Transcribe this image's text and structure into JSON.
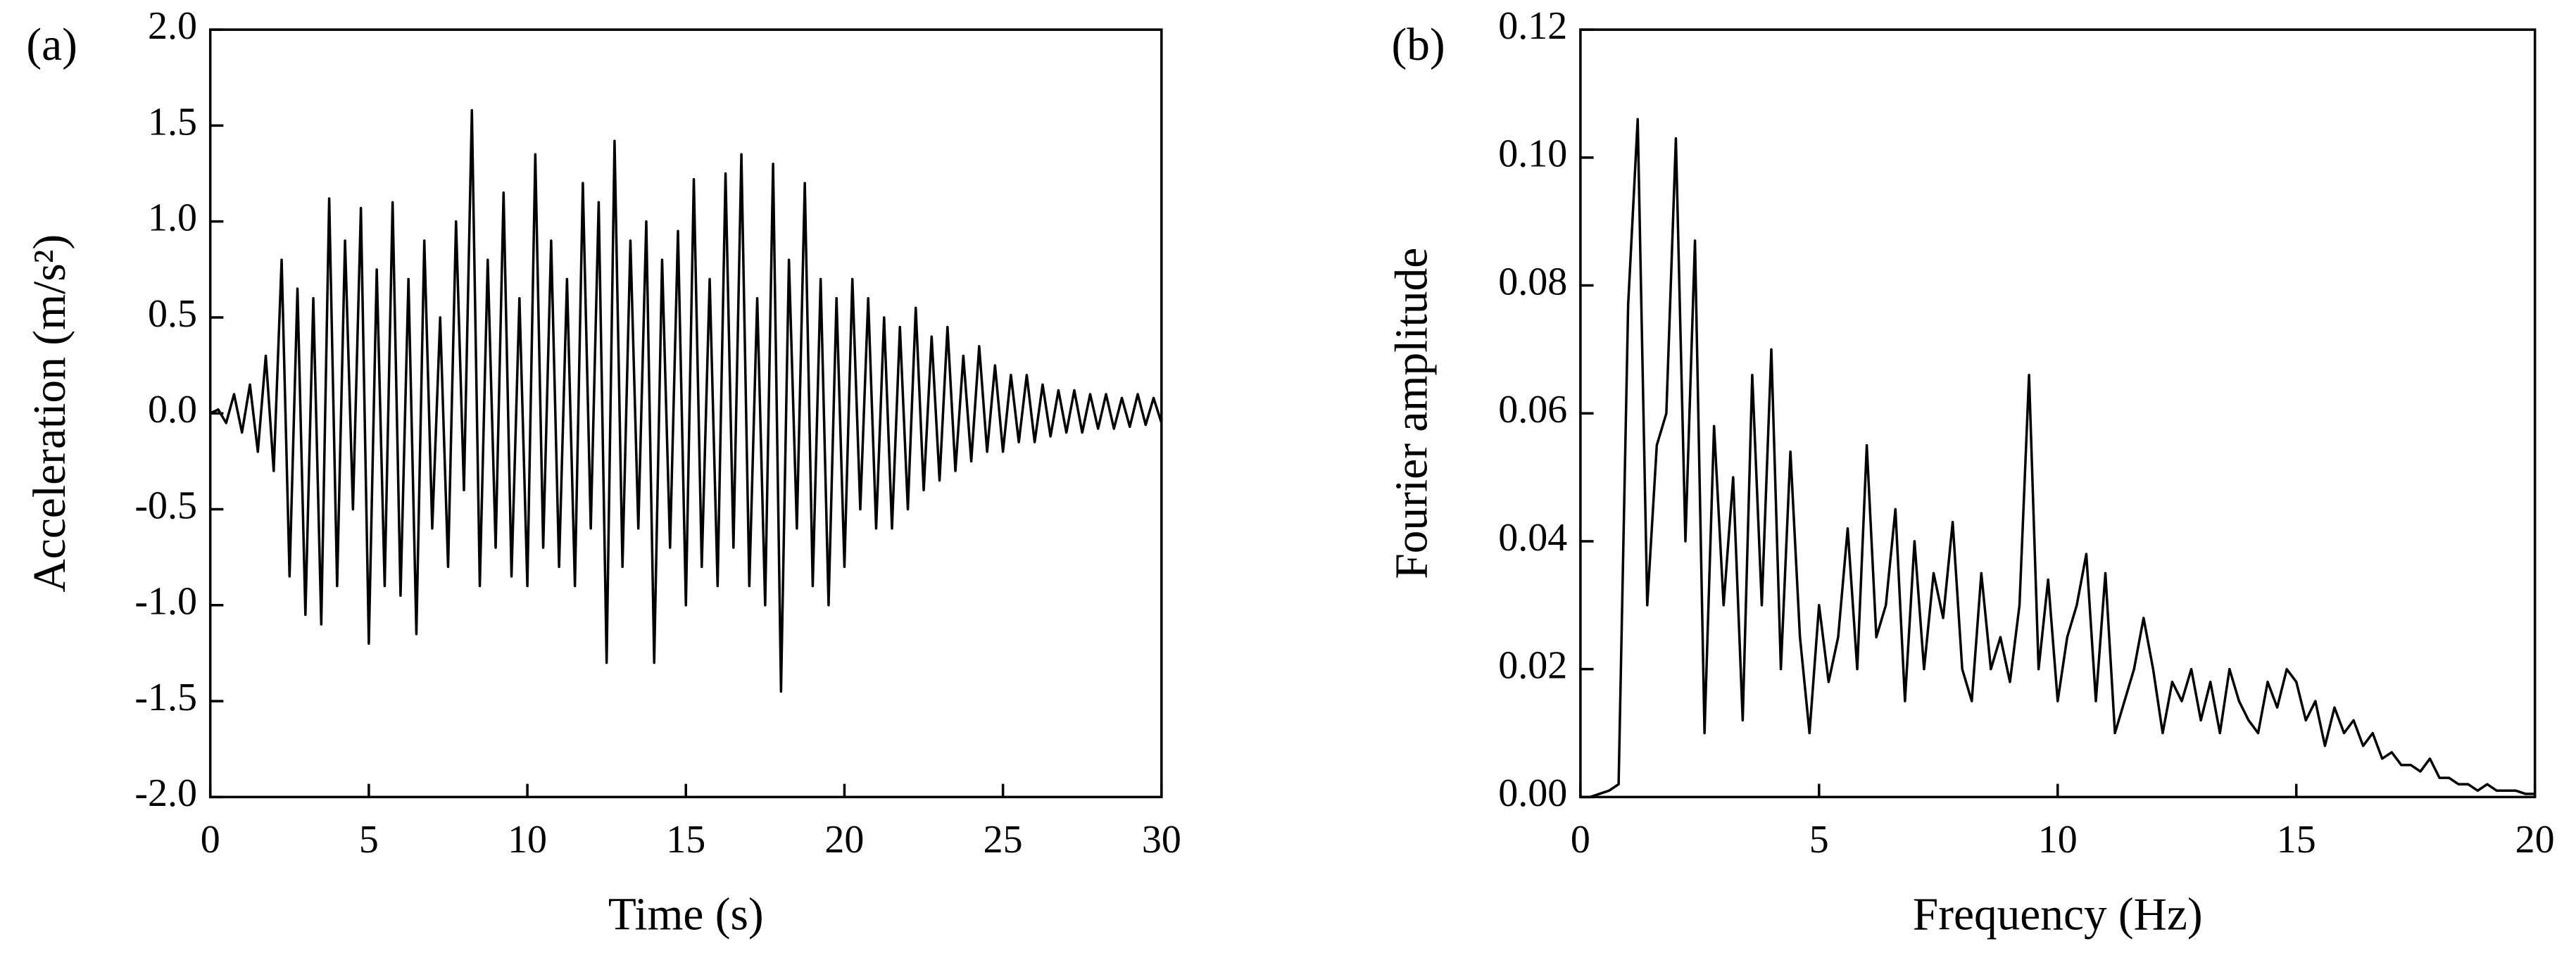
{
  "chart_data": [
    {
      "type": "line",
      "panel_label": "(a)",
      "xlabel": "Time (s)",
      "ylabel": "Acceleration (m/s²)",
      "xlim": [
        0,
        30
      ],
      "xticks": [
        0,
        5,
        10,
        15,
        20,
        25,
        30
      ],
      "ylim": [
        -2,
        2
      ],
      "yticks": [
        {
          "value": -2,
          "label": "-2.0"
        },
        -1.5,
        {
          "value": -1,
          "label": "-1.0"
        },
        -0.5,
        {
          "value": 0,
          "label": "0.0"
        },
        0.5,
        {
          "value": 1,
          "label": "1.0"
        },
        1.5,
        {
          "value": 2,
          "label": "2.0"
        }
      ],
      "x": [
        0,
        0.25,
        0.5,
        0.75,
        1,
        1.25,
        1.5,
        1.75,
        2,
        2.25,
        2.5,
        2.75,
        3,
        3.25,
        3.5,
        3.75,
        4,
        4.25,
        4.5,
        4.75,
        5,
        5.25,
        5.5,
        5.75,
        6,
        6.25,
        6.5,
        6.75,
        7,
        7.25,
        7.5,
        7.75,
        8,
        8.25,
        8.5,
        8.75,
        9,
        9.25,
        9.5,
        9.75,
        10,
        10.25,
        10.5,
        10.75,
        11,
        11.25,
        11.5,
        11.75,
        12,
        12.25,
        12.5,
        12.75,
        13,
        13.25,
        13.5,
        13.75,
        14,
        14.25,
        14.5,
        14.75,
        15,
        15.25,
        15.5,
        15.75,
        16,
        16.25,
        16.5,
        16.75,
        17,
        17.25,
        17.5,
        17.75,
        18,
        18.25,
        18.5,
        18.75,
        19,
        19.25,
        19.5,
        19.75,
        20,
        20.25,
        20.5,
        20.75,
        21,
        21.25,
        21.5,
        21.75,
        22,
        22.25,
        22.5,
        22.75,
        23,
        23.25,
        23.5,
        23.75,
        24,
        24.25,
        24.5,
        24.75,
        25,
        25.25,
        25.5,
        25.75,
        26,
        26.25,
        26.5,
        26.75,
        27,
        27.25,
        27.5,
        27.75,
        28,
        28.25,
        28.5,
        28.75,
        29,
        29.25,
        29.5,
        29.75,
        30
      ],
      "series": [
        {
          "color": "#000000",
          "values": [
            0,
            0.02,
            -0.05,
            0.1,
            -0.1,
            0.15,
            -0.2,
            0.3,
            -0.3,
            0.8,
            -0.85,
            0.65,
            -1.05,
            0.6,
            -1.1,
            1.12,
            -0.9,
            0.9,
            -0.5,
            1.07,
            -1.2,
            0.75,
            -0.9,
            1.1,
            -0.95,
            0.7,
            -1.15,
            0.9,
            -0.6,
            0.5,
            -0.8,
            1.0,
            -0.4,
            1.58,
            -0.9,
            0.8,
            -0.7,
            1.15,
            -0.85,
            0.6,
            -0.9,
            1.35,
            -0.7,
            0.9,
            -0.8,
            0.7,
            -0.9,
            1.2,
            -0.6,
            1.1,
            -1.3,
            1.42,
            -0.8,
            0.9,
            -0.6,
            1.0,
            -1.3,
            0.8,
            -0.7,
            0.95,
            -1.0,
            1.22,
            -0.8,
            0.7,
            -0.9,
            1.25,
            -0.7,
            1.35,
            -0.9,
            0.6,
            -1.0,
            1.3,
            -1.45,
            0.8,
            -0.6,
            1.2,
            -0.9,
            0.7,
            -1.0,
            0.6,
            -0.8,
            0.7,
            -0.5,
            0.6,
            -0.6,
            0.5,
            -0.6,
            0.45,
            -0.5,
            0.55,
            -0.4,
            0.4,
            -0.35,
            0.45,
            -0.3,
            0.3,
            -0.25,
            0.35,
            -0.2,
            0.25,
            -0.2,
            0.2,
            -0.15,
            0.2,
            -0.15,
            0.15,
            -0.12,
            0.12,
            -0.1,
            0.12,
            -0.1,
            0.1,
            -0.08,
            0.1,
            -0.08,
            0.08,
            -0.07,
            0.1,
            -0.06,
            0.08,
            -0.05
          ]
        }
      ]
    },
    {
      "type": "line",
      "panel_label": "(b)",
      "xlabel": "Frequency (Hz)",
      "ylabel": "Fourier amplitude",
      "xlim": [
        0,
        20
      ],
      "xticks": [
        0,
        5,
        10,
        15,
        20
      ],
      "ylim": [
        0,
        0.12
      ],
      "yticks": [
        {
          "value": 0,
          "label": "0.00"
        },
        {
          "value": 0.02,
          "label": "0.02"
        },
        {
          "value": 0.04,
          "label": "0.04"
        },
        {
          "value": 0.06,
          "label": "0.06"
        },
        {
          "value": 0.08,
          "label": "0.08"
        },
        {
          "value": 0.1,
          "label": "0.10"
        },
        {
          "value": 0.12,
          "label": "0.12"
        }
      ],
      "x": [
        0,
        0.2,
        0.4,
        0.6,
        0.8,
        1,
        1.2,
        1.4,
        1.6,
        1.8,
        2,
        2.2,
        2.4,
        2.6,
        2.8,
        3,
        3.2,
        3.4,
        3.6,
        3.8,
        4,
        4.2,
        4.4,
        4.6,
        4.8,
        5,
        5.2,
        5.4,
        5.6,
        5.8,
        6,
        6.2,
        6.4,
        6.6,
        6.8,
        7,
        7.2,
        7.4,
        7.6,
        7.8,
        8,
        8.2,
        8.4,
        8.6,
        8.8,
        9,
        9.2,
        9.4,
        9.6,
        9.8,
        10,
        10.2,
        10.4,
        10.6,
        10.8,
        11,
        11.2,
        11.4,
        11.6,
        11.8,
        12,
        12.2,
        12.4,
        12.6,
        12.8,
        13,
        13.2,
        13.4,
        13.6,
        13.8,
        14,
        14.2,
        14.4,
        14.6,
        14.8,
        15,
        15.2,
        15.4,
        15.6,
        15.8,
        16,
        16.2,
        16.4,
        16.6,
        16.8,
        17,
        17.2,
        17.4,
        17.6,
        17.8,
        18,
        18.2,
        18.4,
        18.6,
        18.8,
        19,
        19.2,
        19.4,
        19.6,
        19.8,
        20
      ],
      "series": [
        {
          "color": "#000000",
          "values": [
            0,
            0,
            0.0005,
            0.001,
            0.002,
            0.077,
            0.106,
            0.03,
            0.055,
            0.06,
            0.103,
            0.04,
            0.087,
            0.01,
            0.058,
            0.03,
            0.05,
            0.012,
            0.066,
            0.03,
            0.07,
            0.02,
            0.054,
            0.025,
            0.01,
            0.03,
            0.018,
            0.025,
            0.042,
            0.02,
            0.055,
            0.025,
            0.03,
            0.045,
            0.015,
            0.04,
            0.02,
            0.035,
            0.028,
            0.043,
            0.02,
            0.015,
            0.035,
            0.02,
            0.025,
            0.018,
            0.03,
            0.066,
            0.02,
            0.034,
            0.015,
            0.025,
            0.03,
            0.038,
            0.015,
            0.035,
            0.01,
            0.015,
            0.02,
            0.028,
            0.02,
            0.01,
            0.018,
            0.015,
            0.02,
            0.012,
            0.018,
            0.01,
            0.02,
            0.015,
            0.012,
            0.01,
            0.018,
            0.014,
            0.02,
            0.018,
            0.012,
            0.015,
            0.008,
            0.014,
            0.01,
            0.012,
            0.008,
            0.01,
            0.006,
            0.007,
            0.005,
            0.005,
            0.004,
            0.006,
            0.003,
            0.003,
            0.002,
            0.002,
            0.001,
            0.002,
            0.001,
            0.001,
            0.001,
            0.0005,
            0.0005
          ]
        }
      ]
    }
  ]
}
